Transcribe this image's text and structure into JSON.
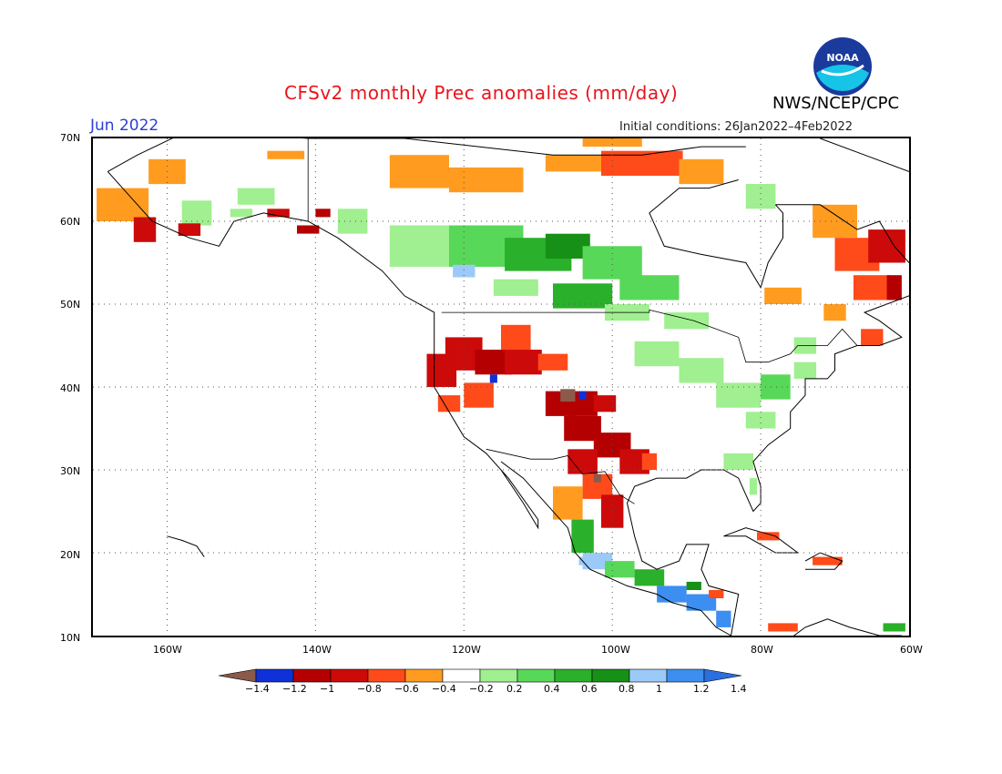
{
  "title": "CFSv2 monthly Prec anomalies (mm/day)",
  "month": "Jun 2022",
  "initial_conditions": "Initial conditions: 26Jan2022–4Feb2022",
  "agency": "NWS/NCEP/CPC",
  "logo_text": "NOAA",
  "lat_labels": [
    "70N",
    "60N",
    "50N",
    "40N",
    "30N",
    "20N",
    "10N"
  ],
  "lon_labels": [
    "160W",
    "140W",
    "120W",
    "100W",
    "80W",
    "60W"
  ],
  "colorbar": {
    "labels": [
      "−1.4",
      "−1.2",
      "−1",
      "−0.8",
      "−0.6",
      "−0.4",
      "−0.2",
      "0.2",
      "0.4",
      "0.6",
      "0.8",
      "1",
      "1.2",
      "1.4"
    ],
    "colors": [
      "#8b5a4a",
      "#1030d8",
      "#b40000",
      "#cc0a0a",
      "#ff4a1a",
      "#ff9c20",
      "#ffffff",
      "#a0ef90",
      "#58d858",
      "#2ab02a",
      "#169016",
      "#9ccaf8",
      "#3c8ef0",
      "#2a6ee0"
    ]
  },
  "map": {
    "lon_range": [
      -170,
      -60
    ],
    "lat_range": [
      10,
      70
    ],
    "grid_lons": [
      -160,
      -140,
      -120,
      -100,
      -80
    ],
    "grid_lats": [
      20,
      30,
      40,
      50,
      60
    ],
    "colors": {
      "dry_brown": "#8b5a4a",
      "dry_12": "#1030d8",
      "dry_10": "#b40000",
      "dry_08": "#cc0a0a",
      "dry_06": "#ff4a1a",
      "dry_04": "#ff9c20",
      "wet_02": "#a0ef90",
      "wet_04": "#58d858",
      "wet_06": "#2ab02a",
      "wet_08": "#169016",
      "wet_10": "#9ccaf8",
      "wet_12": "#3c8ef0"
    }
  }
}
